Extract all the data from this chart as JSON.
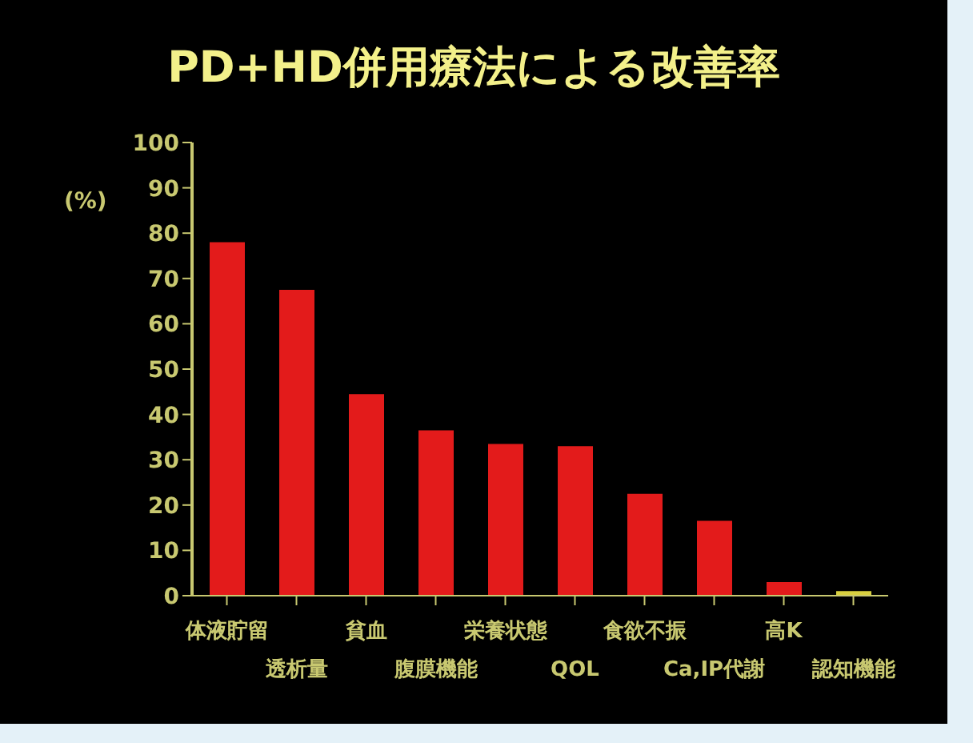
{
  "chart_data": {
    "type": "bar",
    "title": "PD+HD併用療法による改善率",
    "ylabel": "(%)",
    "categories": [
      "体液貯留",
      "透析量",
      "貧血",
      "腹膜機能",
      "栄養状態",
      "QOL",
      "食欲不振",
      "Ca,IP代謝",
      "高K",
      "認知機能"
    ],
    "values": [
      78,
      67.5,
      44.5,
      36.5,
      33.5,
      33,
      22.5,
      16.5,
      3,
      1
    ],
    "colors": [
      "#e31b1b",
      "#e31b1b",
      "#e31b1b",
      "#e31b1b",
      "#e31b1b",
      "#e31b1b",
      "#e31b1b",
      "#e31b1b",
      "#e31b1b",
      "#d8d040"
    ],
    "ylim": [
      0,
      100
    ],
    "yticks": [
      0,
      10,
      20,
      30,
      40,
      50,
      60,
      70,
      80,
      90,
      100
    ],
    "grid": false,
    "legend": false
  }
}
